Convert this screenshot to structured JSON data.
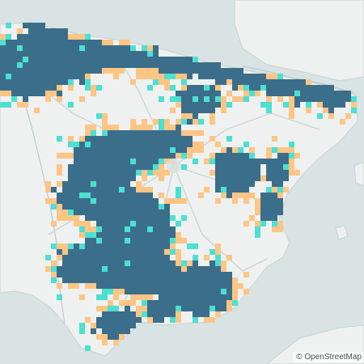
{
  "map": {
    "attribution": "© OpenStreetMap",
    "legend_colors": {
      "high": "#3b6e8a",
      "medium": "#ffc585",
      "low": "#4ce0d2",
      "land": "#eef1ef",
      "sea": "#d9e3e3",
      "roads": "#c9d4d4",
      "borders": "#b9c6c6"
    }
  }
}
